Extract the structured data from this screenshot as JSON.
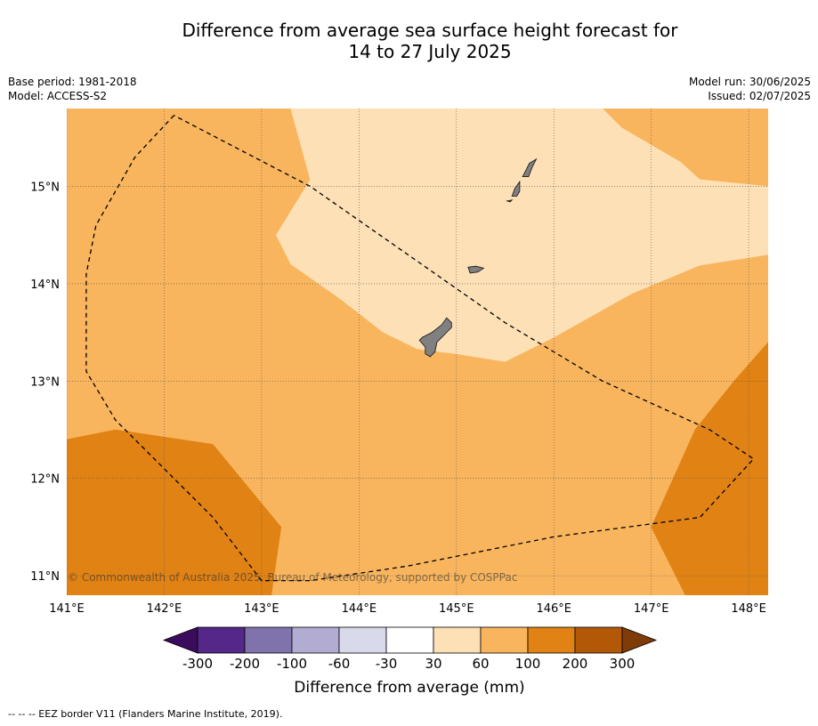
{
  "title": {
    "line1": "Difference from average sea surface height forecast for",
    "line2": "14 to 27 July 2025"
  },
  "meta_left": {
    "base_period": "Base period: 1981-2018",
    "model": "Model: ACCESS-S2"
  },
  "meta_right": {
    "model_run": "Model run: 30/06/2025",
    "issued": "Issued: 02/07/2025"
  },
  "map": {
    "lon_range": [
      141.0,
      148.2
    ],
    "lat_range": [
      10.8,
      15.8
    ],
    "lon_ticks": [
      {
        "value": 141,
        "label": "141°E"
      },
      {
        "value": 142,
        "label": "142°E"
      },
      {
        "value": 143,
        "label": "143°E"
      },
      {
        "value": 144,
        "label": "144°E"
      },
      {
        "value": 145,
        "label": "145°E"
      },
      {
        "value": 146,
        "label": "146°E"
      },
      {
        "value": 147,
        "label": "147°E"
      },
      {
        "value": 148,
        "label": "148°E"
      }
    ],
    "lat_ticks": [
      {
        "value": 15,
        "label": "15°N"
      },
      {
        "value": 14,
        "label": "14°N"
      },
      {
        "value": 13,
        "label": "13°N"
      },
      {
        "value": 12,
        "label": "12°N"
      },
      {
        "value": 11,
        "label": "11°N"
      }
    ],
    "copyright": "© Commonwealth of Australia 2025, Bureau of Meteorology, supported by COSPPac",
    "contours": [
      {
        "name": "contour-30-60",
        "color": "#fde0b6",
        "lonlat": [
          [
            143.3,
            15.8
          ],
          [
            146.5,
            15.8
          ],
          [
            146.7,
            15.6
          ],
          [
            147.3,
            15.25
          ],
          [
            147.5,
            15.07
          ],
          [
            148.2,
            15.0
          ],
          [
            148.2,
            14.3
          ],
          [
            147.5,
            14.19
          ],
          [
            146.8,
            13.9
          ],
          [
            146.0,
            13.45
          ],
          [
            145.5,
            13.2
          ],
          [
            145.0,
            13.28
          ],
          [
            144.6,
            13.33
          ],
          [
            144.25,
            13.5
          ],
          [
            143.8,
            13.85
          ],
          [
            143.3,
            14.2
          ],
          [
            143.15,
            14.5
          ],
          [
            143.5,
            15.07
          ]
        ]
      },
      {
        "name": "contour-100-200-southwest",
        "color": "#e08214",
        "lonlat": [
          [
            141.0,
            12.4
          ],
          [
            141.5,
            12.5
          ],
          [
            142.5,
            12.35
          ],
          [
            143.2,
            11.5
          ],
          [
            143.1,
            10.8
          ],
          [
            141.0,
            10.8
          ]
        ]
      },
      {
        "name": "contour-100-200-east",
        "color": "#e08214",
        "lonlat": [
          [
            148.2,
            13.4
          ],
          [
            147.85,
            13.0
          ],
          [
            147.45,
            12.5
          ],
          [
            147.0,
            11.5
          ],
          [
            147.35,
            10.8
          ],
          [
            148.2,
            10.8
          ]
        ]
      }
    ],
    "land": [
      {
        "name": "guam",
        "lonlat": [
          [
            144.65,
            13.45
          ],
          [
            144.75,
            13.5
          ],
          [
            144.85,
            13.58
          ],
          [
            144.9,
            13.65
          ],
          [
            144.95,
            13.6
          ],
          [
            144.95,
            13.55
          ],
          [
            144.9,
            13.5
          ],
          [
            144.85,
            13.45
          ],
          [
            144.8,
            13.4
          ],
          [
            144.78,
            13.3
          ],
          [
            144.73,
            13.25
          ],
          [
            144.68,
            13.28
          ],
          [
            144.68,
            13.35
          ],
          [
            144.62,
            13.42
          ]
        ]
      },
      {
        "name": "rota",
        "lonlat": [
          [
            145.12,
            14.17
          ],
          [
            145.2,
            14.18
          ],
          [
            145.28,
            14.16
          ],
          [
            145.22,
            14.12
          ],
          [
            145.14,
            14.11
          ]
        ]
      },
      {
        "name": "tinian",
        "lonlat": [
          [
            145.57,
            14.9
          ],
          [
            145.6,
            14.98
          ],
          [
            145.65,
            15.05
          ],
          [
            145.65,
            14.95
          ],
          [
            145.62,
            14.9
          ]
        ]
      },
      {
        "name": "saipan",
        "lonlat": [
          [
            145.68,
            15.1
          ],
          [
            145.72,
            15.18
          ],
          [
            145.75,
            15.24
          ],
          [
            145.82,
            15.28
          ],
          [
            145.78,
            15.2
          ],
          [
            145.74,
            15.1
          ]
        ]
      },
      {
        "name": "aguijan",
        "lonlat": [
          [
            145.52,
            14.85
          ],
          [
            145.57,
            14.86
          ],
          [
            145.55,
            14.84
          ]
        ]
      }
    ],
    "eez_border": [
      [
        142.1,
        15.73
      ],
      [
        141.7,
        15.3
      ],
      [
        141.3,
        14.6
      ],
      [
        141.2,
        14.1
      ],
      [
        141.2,
        13.1
      ],
      [
        141.5,
        12.6
      ],
      [
        142.5,
        11.6
      ],
      [
        143.0,
        10.95
      ],
      [
        143.5,
        10.95
      ],
      [
        144.5,
        11.1
      ],
      [
        146.0,
        11.4
      ],
      [
        147.5,
        11.6
      ],
      [
        148.05,
        12.2
      ],
      [
        147.6,
        12.5
      ],
      [
        146.5,
        13.0
      ],
      [
        145.5,
        13.6
      ],
      [
        144.5,
        14.3
      ],
      [
        143.5,
        15.0
      ],
      [
        142.1,
        15.73
      ]
    ]
  },
  "colorbar": {
    "labels": [
      "-300",
      "-200",
      "-100",
      "-60",
      "-30",
      "30",
      "60",
      "100",
      "200",
      "300"
    ],
    "colors": [
      "#3b0c5e",
      "#542788",
      "#8073ac",
      "#b2abd2",
      "#d8daeb",
      "#ffffff",
      "#fde0b6",
      "#f8b55e",
      "#e08214",
      "#b35806",
      "#7f3b08"
    ],
    "unit_label": "Difference from average (mm)"
  },
  "footer": {
    "legend_line": "-- -- -- EEZ border V11 (Flanders Marine Institute, 2019)."
  }
}
